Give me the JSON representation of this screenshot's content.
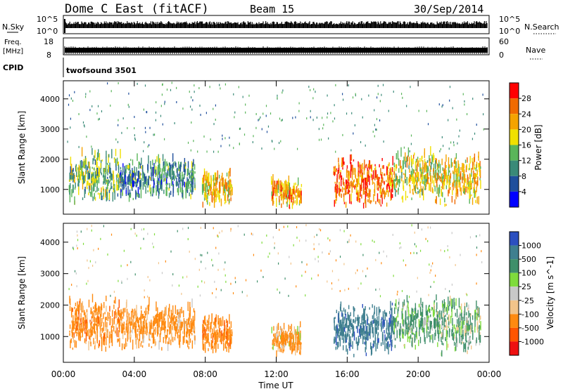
{
  "header": {
    "station": "Dome C East (fitACF)",
    "beam": "Beam 15",
    "date": "30/Sep/2014"
  },
  "top_panels": {
    "nsky_label": "N.Sky",
    "nsky_ticks": [
      "10^5",
      "10^0"
    ],
    "nsearch_label": "N.Search",
    "freq_label": "Freq.",
    "freq_unit": "[MHz]",
    "freq_ticks": [
      "18",
      "8"
    ],
    "nave_label": "Nave",
    "nave_ticks": [
      "60",
      "0"
    ],
    "cpid_label": "CPID",
    "cpid_value": "twofsound 3501"
  },
  "colors": {
    "power_scale": [
      "#0000ff",
      "#1f4f9c",
      "#3a8a78",
      "#5ab55a",
      "#f0e000",
      "#f5a300",
      "#f06a00",
      "#ff0000"
    ],
    "velocity_scale": [
      "#ee1111",
      "#ff5500",
      "#ff8a10",
      "#f2c48a",
      "#c8c8c8",
      "#7fdc3c",
      "#3f8f6a",
      "#3f7f8f",
      "#2c50c0"
    ],
    "ground_scatter": "#bfbfbf"
  },
  "chart_data": [
    {
      "type": "heatmap",
      "name": "power",
      "xlabel": "",
      "ylabel": "Slant Range [km]",
      "xlim": [
        0,
        24
      ],
      "ylim": [
        180,
        4600
      ],
      "yticks": [
        1000,
        2000,
        3000,
        4000
      ],
      "ytick_labels": [
        "1000",
        "2000",
        "3000",
        "4000"
      ],
      "colorbar": {
        "label": "Power [dB]",
        "range": [
          0,
          32
        ],
        "ticks": [
          4,
          8,
          12,
          16,
          20,
          24,
          28
        ],
        "tick_labels": [
          "4",
          "8",
          "12",
          "16",
          "20",
          "24",
          "28"
        ]
      },
      "echo_regions": [
        {
          "t0": 0.3,
          "t1": 3.2,
          "r0": 450,
          "r1": 2200,
          "level": 14
        },
        {
          "t0": 3.2,
          "t1": 7.4,
          "r0": 520,
          "r1": 2000,
          "level": 10
        },
        {
          "t0": 7.8,
          "t1": 9.5,
          "r0": 380,
          "r1": 1600,
          "level": 20
        },
        {
          "t0": 11.7,
          "t1": 13.4,
          "r0": 320,
          "r1": 1300,
          "level": 22
        },
        {
          "t0": 15.2,
          "t1": 18.6,
          "r0": 300,
          "r1": 2000,
          "level": 26
        },
        {
          "t0": 18.6,
          "t1": 21.0,
          "r0": 500,
          "r1": 2200,
          "level": 18
        },
        {
          "t0": 21.0,
          "t1": 23.5,
          "r0": 350,
          "r1": 2100,
          "level": 20
        }
      ]
    },
    {
      "type": "heatmap",
      "name": "velocity",
      "xlabel": "Time UT",
      "ylabel": "Slant Range [km]",
      "xlim": [
        0,
        24
      ],
      "ylim": [
        180,
        4600
      ],
      "xticks": [
        0,
        4,
        8,
        12,
        16,
        20,
        24
      ],
      "xtick_labels": [
        "00:00",
        "04:00",
        "08:00",
        "12:00",
        "16:00",
        "20:00",
        "00:00"
      ],
      "yticks": [
        1000,
        2000,
        3000,
        4000
      ],
      "ytick_labels": [
        "1000",
        "2000",
        "3000",
        "4000"
      ],
      "colorbar": {
        "label": "Velocity [m s^-1]",
        "ticks": [
          -1000,
          -500,
          -100,
          -25,
          25,
          100,
          500,
          1000
        ],
        "tick_labels": [
          "-1000",
          "-500",
          "-100",
          "-25",
          "25",
          "100",
          "500",
          "1000"
        ]
      },
      "echo_regions": [
        {
          "t0": 0.3,
          "t1": 3.2,
          "r0": 450,
          "r1": 2200,
          "level": -300
        },
        {
          "t0": 3.2,
          "t1": 7.4,
          "r0": 520,
          "r1": 2000,
          "level": -250
        },
        {
          "t0": 7.8,
          "t1": 9.5,
          "r0": 380,
          "r1": 1600,
          "level": -350
        },
        {
          "t0": 11.7,
          "t1": 13.4,
          "r0": 320,
          "r1": 1300,
          "level": -200
        },
        {
          "t0": 15.2,
          "t1": 18.6,
          "r0": 300,
          "r1": 2000,
          "level": 800
        },
        {
          "t0": 18.6,
          "t1": 21.0,
          "r0": 500,
          "r1": 2200,
          "level": 200
        },
        {
          "t0": 21.0,
          "t1": 23.5,
          "r0": 350,
          "r1": 2100,
          "level": 150
        }
      ]
    }
  ]
}
